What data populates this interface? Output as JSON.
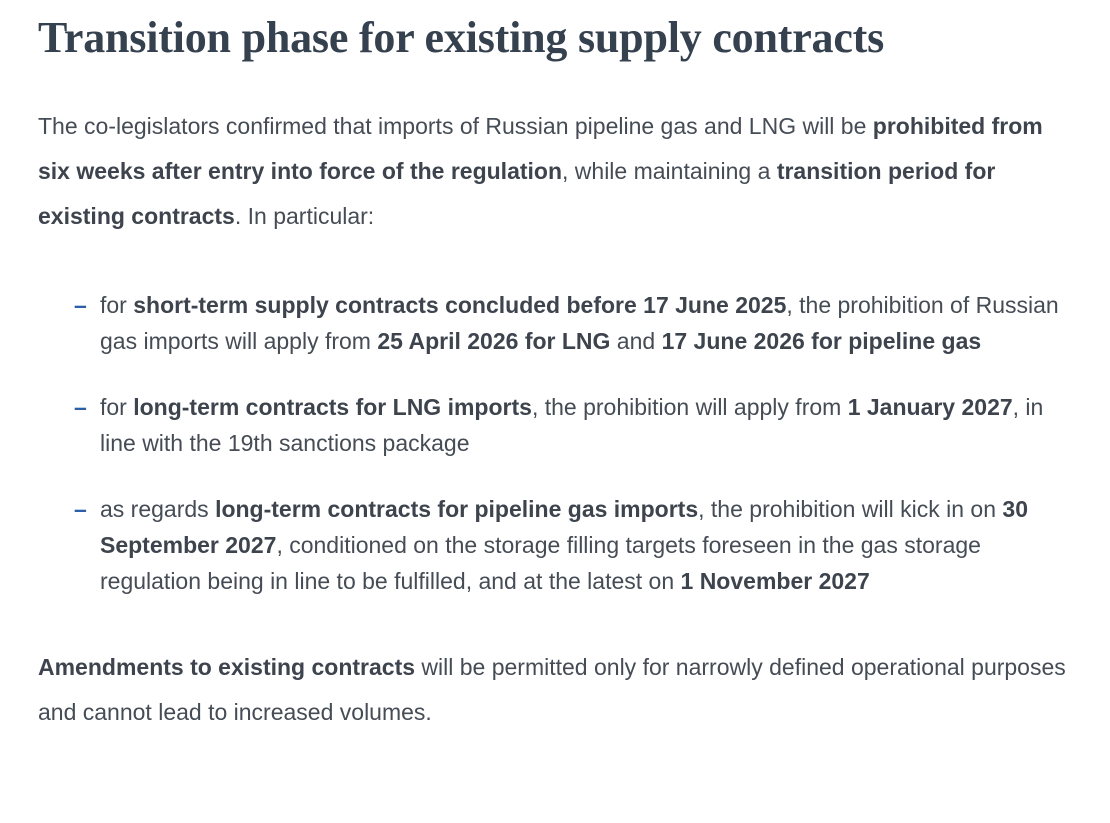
{
  "page": {
    "title": "Transition phase for existing supply contracts",
    "colors": {
      "accent_blue": "#2d5fa9",
      "title_color": "#35414e",
      "body_color": "#454c55"
    },
    "intro_runs": [
      {
        "text": "The co-legislators confirmed that imports of Russian pipeline gas and LNG will be ",
        "bold": false
      },
      {
        "text": "prohibited from six weeks after entry into force of the regulation",
        "bold": true
      },
      {
        "text": ", while maintaining a ",
        "bold": false
      },
      {
        "text": "transition period for existing contracts",
        "bold": true
      },
      {
        "text": ". In particular:",
        "bold": false
      }
    ],
    "bullets": [
      {
        "marker": "–",
        "runs": [
          {
            "text": "for ",
            "bold": false
          },
          {
            "text": "short-term supply contracts concluded before 17 June 2025",
            "bold": true
          },
          {
            "text": ", the prohibition of Russian gas imports will apply from ",
            "bold": false
          },
          {
            "text": "25 April 2026 for LNG",
            "bold": true
          },
          {
            "text": " and ",
            "bold": false
          },
          {
            "text": "17 June 2026 for pipeline gas",
            "bold": true
          }
        ]
      },
      {
        "marker": "–",
        "runs": [
          {
            "text": "for ",
            "bold": false
          },
          {
            "text": "long-term contracts for LNG imports",
            "bold": true
          },
          {
            "text": ", the prohibition will apply from ",
            "bold": false
          },
          {
            "text": "1 January 2027",
            "bold": true
          },
          {
            "text": ", in line with the 19th sanctions package",
            "bold": false
          }
        ]
      },
      {
        "marker": "–",
        "runs": [
          {
            "text": "as regards ",
            "bold": false
          },
          {
            "text": "long-term contracts for pipeline gas imports",
            "bold": true
          },
          {
            "text": ", the prohibition will kick in on ",
            "bold": false
          },
          {
            "text": "30 September 2027",
            "bold": true
          },
          {
            "text": ", conditioned on the storage filling targets foreseen in the gas storage regulation being in line to be fulfilled, and at the latest on ",
            "bold": false
          },
          {
            "text": "1 November 2027",
            "bold": true
          }
        ]
      }
    ],
    "closing_runs": [
      {
        "text": "Amendments to existing contracts",
        "bold": true
      },
      {
        "text": " will be permitted only for narrowly defined operational purposes and cannot lead to increased volumes.",
        "bold": false
      }
    ]
  }
}
